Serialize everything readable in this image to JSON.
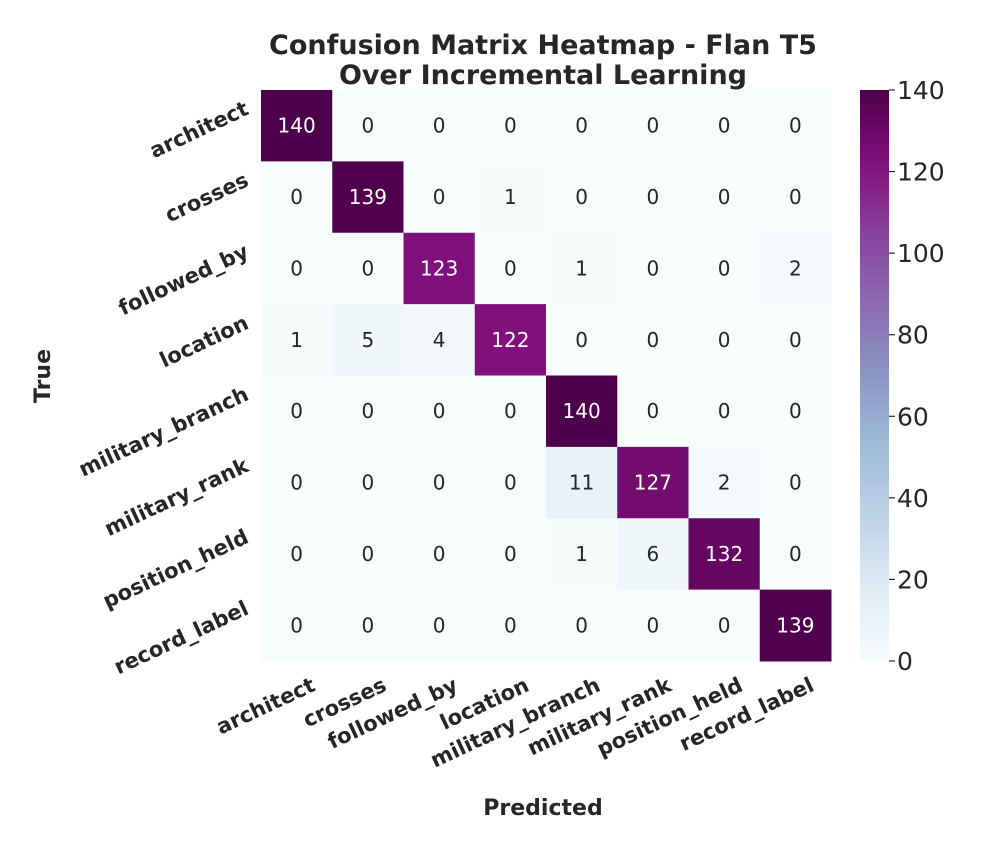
{
  "chart_data": {
    "type": "heatmap",
    "title": [
      "Confusion Matrix Heatmap - Flan T5",
      "Over Incremental Learning"
    ],
    "xlabel": "Predicted",
    "ylabel": "True",
    "x_categories": [
      "architect",
      "crosses",
      "followed_by",
      "location",
      "military_branch",
      "military_rank",
      "position_held",
      "record_label"
    ],
    "y_categories": [
      "architect",
      "crosses",
      "followed_by",
      "location",
      "military_branch",
      "military_rank",
      "position_held",
      "record_label"
    ],
    "values": [
      [
        140,
        0,
        0,
        0,
        0,
        0,
        0,
        0
      ],
      [
        0,
        139,
        0,
        1,
        0,
        0,
        0,
        0
      ],
      [
        0,
        0,
        123,
        0,
        1,
        0,
        0,
        2
      ],
      [
        1,
        5,
        4,
        122,
        0,
        0,
        0,
        0
      ],
      [
        0,
        0,
        0,
        0,
        140,
        0,
        0,
        0
      ],
      [
        0,
        0,
        0,
        0,
        11,
        127,
        2,
        0
      ],
      [
        0,
        0,
        0,
        0,
        1,
        6,
        132,
        0
      ],
      [
        0,
        0,
        0,
        0,
        0,
        0,
        0,
        139
      ]
    ],
    "colormap": "BuPu",
    "colorbar": {
      "range": [
        0,
        140
      ],
      "ticks": [
        0,
        20,
        40,
        60,
        80,
        100,
        120,
        140
      ]
    },
    "annotated": true,
    "grid": false
  }
}
